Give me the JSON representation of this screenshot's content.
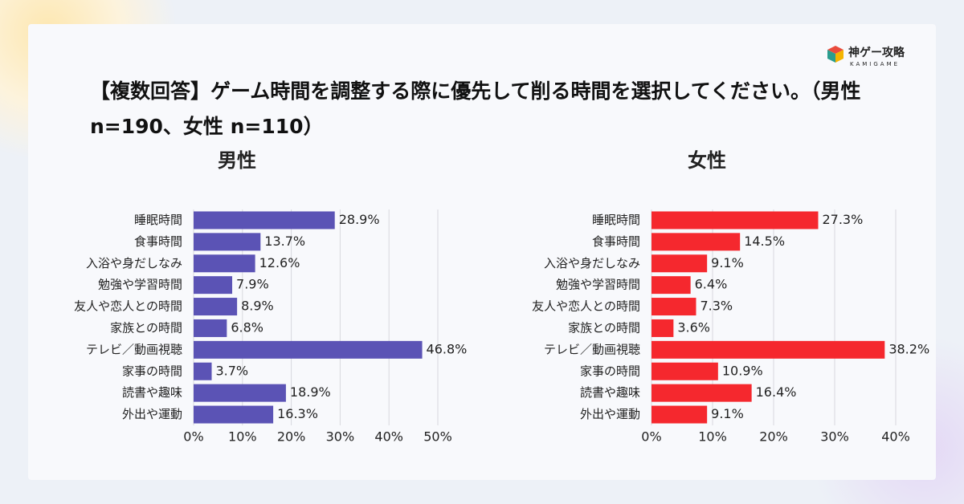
{
  "title": "【複数回答】ゲーム時間を調整する際に優先して削る時間を選択してください。（男性 n=190、女性 n=110）",
  "logo": {
    "name": "神ゲー攻略",
    "sub": "KAMIGAME"
  },
  "chart_data": [
    {
      "type": "bar",
      "orientation": "horizontal",
      "title": "男性",
      "color": "#5b53b5",
      "grid": true,
      "categories": [
        "睡眠時間",
        "食事時間",
        "入浴や身だしなみ",
        "勉強や学習時間",
        "友人や恋人との時間",
        "家族との時間",
        "テレビ／動画視聴",
        "家事の時間",
        "読書や趣味",
        "外出や運動"
      ],
      "values": [
        28.9,
        13.7,
        12.6,
        7.9,
        8.9,
        6.8,
        46.8,
        3.7,
        18.9,
        16.3
      ],
      "value_labels": [
        "28.9%",
        "13.7%",
        "12.6%",
        "7.9%",
        "8.9%",
        "6.8%",
        "46.8%",
        "3.7%",
        "18.9%",
        "16.3%"
      ],
      "xlim": [
        0,
        50
      ],
      "xticks": [
        {
          "value": 0,
          "label": "0%"
        },
        {
          "value": 10,
          "label": "10%"
        },
        {
          "value": 20,
          "label": "20%"
        },
        {
          "value": 30,
          "label": "30%"
        },
        {
          "value": 40,
          "label": "40%"
        },
        {
          "value": 50,
          "label": "50%"
        }
      ]
    },
    {
      "type": "bar",
      "orientation": "horizontal",
      "title": "女性",
      "color": "#f5282e",
      "grid": true,
      "categories": [
        "睡眠時間",
        "食事時間",
        "入浴や身だしなみ",
        "勉強や学習時間",
        "友人や恋人との時間",
        "家族との時間",
        "テレビ／動画視聴",
        "家事の時間",
        "読書や趣味",
        "外出や運動"
      ],
      "values": [
        27.3,
        14.5,
        9.1,
        6.4,
        7.3,
        3.6,
        38.2,
        10.9,
        16.4,
        9.1
      ],
      "value_labels": [
        "27.3%",
        "14.5%",
        "9.1%",
        "6.4%",
        "7.3%",
        "3.6%",
        "38.2%",
        "10.9%",
        "16.4%",
        "9.1%"
      ],
      "xlim": [
        0,
        40
      ],
      "xticks": [
        {
          "value": 0,
          "label": "0%"
        },
        {
          "value": 10,
          "label": "10%"
        },
        {
          "value": 20,
          "label": "20%"
        },
        {
          "value": 30,
          "label": "30%"
        },
        {
          "value": 40,
          "label": "40%"
        }
      ]
    }
  ]
}
